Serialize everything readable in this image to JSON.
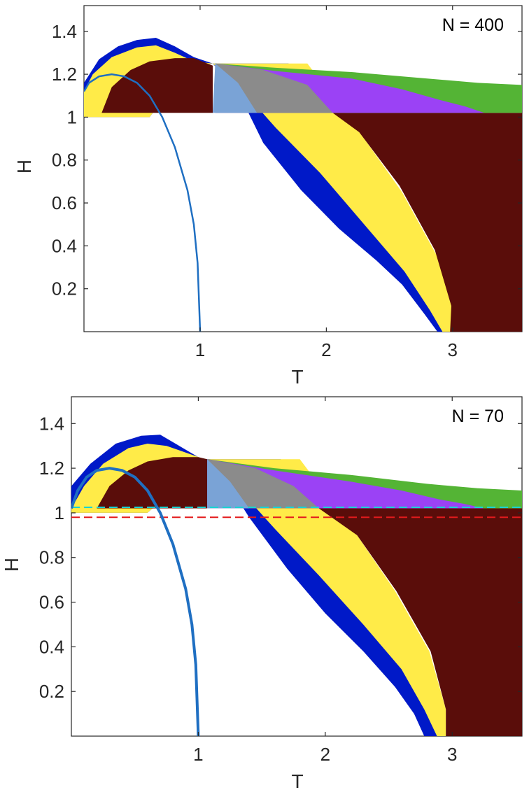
{
  "chart_data": [
    {
      "type": "area",
      "annotation": "N = 400",
      "xlabel": "T",
      "ylabel": "H",
      "xlim": [
        0.08,
        3.55
      ],
      "ylim": [
        0.0,
        1.52
      ],
      "xticks": [
        1,
        2,
        3
      ],
      "xtick_labels": [
        "1",
        "2",
        "3"
      ],
      "yticks": [
        0.2,
        0.4,
        0.6,
        0.8,
        1.0,
        1.2,
        1.4
      ],
      "ytick_labels": [
        "0.2",
        "0.4",
        "0.6",
        "0.8",
        "1",
        "1.2",
        "1.4"
      ],
      "grid": false,
      "regions": [
        {
          "color": "#0019c8",
          "points": [
            [
              0.08,
              1.16
            ],
            [
              0.2,
              1.27
            ],
            [
              0.35,
              1.33
            ],
            [
              0.5,
              1.36
            ],
            [
              0.65,
              1.37
            ],
            [
              0.8,
              1.33
            ],
            [
              0.95,
              1.28
            ],
            [
              1.1,
              1.25
            ],
            [
              1.3,
              1.12
            ],
            [
              1.5,
              0.88
            ],
            [
              1.8,
              0.66
            ],
            [
              2.1,
              0.48
            ],
            [
              2.4,
              0.33
            ],
            [
              2.6,
              0.22
            ],
            [
              2.78,
              0.08
            ],
            [
              2.88,
              0.0
            ],
            [
              2.96,
              0.0
            ],
            [
              2.95,
              0.1
            ],
            [
              2.78,
              0.35
            ],
            [
              2.45,
              0.65
            ],
            [
              2.1,
              0.95
            ],
            [
              1.7,
              1.25
            ],
            [
              1.1,
              1.25
            ],
            [
              0.9,
              1.23
            ],
            [
              0.6,
              1.0
            ],
            [
              0.08,
              1.0
            ]
          ]
        },
        {
          "color": "#ffeb48",
          "points": [
            [
              0.08,
              1.12
            ],
            [
              0.15,
              1.2
            ],
            [
              0.3,
              1.28
            ],
            [
              0.5,
              1.325
            ],
            [
              0.65,
              1.335
            ],
            [
              0.8,
              1.3
            ],
            [
              0.95,
              1.26
            ],
            [
              1.1,
              1.25
            ],
            [
              1.3,
              1.15
            ],
            [
              1.6,
              0.95
            ],
            [
              1.95,
              0.74
            ],
            [
              2.3,
              0.5
            ],
            [
              2.62,
              0.28
            ],
            [
              2.82,
              0.1
            ],
            [
              2.92,
              0.0
            ],
            [
              2.99,
              0.0
            ],
            [
              3.0,
              0.1
            ],
            [
              2.88,
              0.35
            ],
            [
              2.6,
              0.65
            ],
            [
              2.3,
              0.9
            ],
            [
              1.85,
              1.25
            ],
            [
              1.1,
              1.25
            ],
            [
              0.9,
              1.23
            ],
            [
              0.6,
              1.0
            ],
            [
              0.08,
              1.0
            ]
          ]
        },
        {
          "color": "#5a0d0a",
          "points": [
            [
              0.22,
              1.02
            ],
            [
              0.3,
              1.14
            ],
            [
              0.45,
              1.22
            ],
            [
              0.6,
              1.26
            ],
            [
              0.8,
              1.275
            ],
            [
              0.95,
              1.275
            ],
            [
              1.1,
              1.24
            ],
            [
              1.1,
              1.02
            ]
          ]
        },
        {
          "color": "#5a0d0a",
          "points": [
            [
              1.1,
              1.02
            ],
            [
              3.55,
              1.02
            ],
            [
              3.55,
              0.0
            ],
            [
              2.98,
              0.0
            ],
            [
              2.99,
              0.12
            ],
            [
              2.86,
              0.38
            ],
            [
              2.58,
              0.68
            ],
            [
              2.26,
              0.93
            ],
            [
              2.05,
              1.02
            ]
          ]
        },
        {
          "color": "#54b435",
          "points": [
            [
              1.12,
              1.25
            ],
            [
              1.6,
              1.23
            ],
            [
              2.2,
              1.21
            ],
            [
              2.8,
              1.18
            ],
            [
              3.2,
              1.16
            ],
            [
              3.55,
              1.15
            ],
            [
              3.55,
              1.02
            ],
            [
              1.12,
              1.02
            ]
          ]
        },
        {
          "color": "#9b42f5",
          "points": [
            [
              1.12,
              1.25
            ],
            [
              1.6,
              1.215
            ],
            [
              2.2,
              1.18
            ],
            [
              2.6,
              1.13
            ],
            [
              2.9,
              1.08
            ],
            [
              3.1,
              1.05
            ],
            [
              3.25,
              1.02
            ],
            [
              1.12,
              1.02
            ]
          ]
        },
        {
          "color": "#8b8b8b",
          "points": [
            [
              1.12,
              1.25
            ],
            [
              1.5,
              1.22
            ],
            [
              1.85,
              1.15
            ],
            [
              2.05,
              1.02
            ],
            [
              1.45,
              1.02
            ]
          ]
        },
        {
          "color": "#7aa3d6",
          "points": [
            [
              1.12,
              1.25
            ],
            [
              1.3,
              1.16
            ],
            [
              1.45,
              1.02
            ],
            [
              1.1,
              1.02
            ]
          ]
        }
      ],
      "series": [
        {
          "color": "#1f6fc2",
          "x": [
            0.08,
            0.12,
            0.2,
            0.3,
            0.4,
            0.5,
            0.6,
            0.7,
            0.8,
            0.9,
            0.95,
            0.98,
            1.0
          ],
          "y": [
            1.12,
            1.16,
            1.19,
            1.2,
            1.19,
            1.16,
            1.1,
            1.0,
            0.86,
            0.66,
            0.5,
            0.32,
            0.0
          ]
        }
      ],
      "hlines": []
    },
    {
      "type": "area",
      "annotation": "N = 70",
      "xlabel": "T",
      "ylabel": "H",
      "xlim": [
        0.0,
        3.55
      ],
      "ylim": [
        0.0,
        1.52
      ],
      "xticks": [
        1,
        2,
        3
      ],
      "xtick_labels": [
        "1",
        "2",
        "3"
      ],
      "yticks": [
        0.2,
        0.4,
        0.6,
        0.8,
        1.0,
        1.2,
        1.4
      ],
      "ytick_labels": [
        "0.2",
        "0.4",
        "0.6",
        "0.8",
        "1",
        "1.2",
        "1.4"
      ],
      "grid": false,
      "regions": [
        {
          "color": "#0019c8",
          "points": [
            [
              0.0,
              1.12
            ],
            [
              0.15,
              1.22
            ],
            [
              0.35,
              1.31
            ],
            [
              0.55,
              1.345
            ],
            [
              0.7,
              1.35
            ],
            [
              0.85,
              1.3
            ],
            [
              1.0,
              1.25
            ],
            [
              1.2,
              1.16
            ],
            [
              1.4,
              0.98
            ],
            [
              1.7,
              0.75
            ],
            [
              2.0,
              0.55
            ],
            [
              2.3,
              0.38
            ],
            [
              2.55,
              0.22
            ],
            [
              2.7,
              0.1
            ],
            [
              2.78,
              0.0
            ],
            [
              2.9,
              0.0
            ],
            [
              2.88,
              0.12
            ],
            [
              2.7,
              0.38
            ],
            [
              2.4,
              0.65
            ],
            [
              2.0,
              0.98
            ],
            [
              1.65,
              1.24
            ],
            [
              1.05,
              1.24
            ],
            [
              0.8,
              1.1
            ],
            [
              0.6,
              1.0
            ],
            [
              0.0,
              1.0
            ]
          ]
        },
        {
          "color": "#ffeb48",
          "points": [
            [
              0.0,
              1.02
            ],
            [
              0.1,
              1.12
            ],
            [
              0.25,
              1.22
            ],
            [
              0.45,
              1.29
            ],
            [
              0.6,
              1.31
            ],
            [
              0.75,
              1.3
            ],
            [
              0.9,
              1.27
            ],
            [
              1.05,
              1.24
            ],
            [
              1.3,
              1.12
            ],
            [
              1.6,
              0.93
            ],
            [
              1.95,
              0.72
            ],
            [
              2.3,
              0.5
            ],
            [
              2.6,
              0.3
            ],
            [
              2.78,
              0.12
            ],
            [
              2.88,
              0.0
            ],
            [
              2.95,
              0.0
            ],
            [
              2.95,
              0.12
            ],
            [
              2.82,
              0.38
            ],
            [
              2.55,
              0.65
            ],
            [
              2.25,
              0.9
            ],
            [
              1.8,
              1.24
            ],
            [
              1.05,
              1.24
            ],
            [
              0.8,
              1.1
            ],
            [
              0.6,
              1.0
            ],
            [
              0.0,
              1.0
            ]
          ]
        },
        {
          "color": "#5a0d0a",
          "points": [
            [
              0.2,
              1.02
            ],
            [
              0.3,
              1.12
            ],
            [
              0.45,
              1.19
            ],
            [
              0.6,
              1.23
            ],
            [
              0.8,
              1.25
            ],
            [
              1.0,
              1.25
            ],
            [
              1.07,
              1.24
            ],
            [
              1.07,
              1.02
            ]
          ]
        },
        {
          "color": "#5a0d0a",
          "points": [
            [
              1.07,
              1.02
            ],
            [
              3.55,
              1.02
            ],
            [
              3.55,
              0.0
            ],
            [
              2.95,
              0.0
            ],
            [
              2.95,
              0.12
            ],
            [
              2.83,
              0.38
            ],
            [
              2.56,
              0.65
            ],
            [
              2.25,
              0.9
            ],
            [
              1.95,
              1.02
            ]
          ]
        },
        {
          "color": "#54b435",
          "points": [
            [
              1.07,
              1.24
            ],
            [
              1.6,
              1.2
            ],
            [
              2.2,
              1.17
            ],
            [
              2.8,
              1.13
            ],
            [
              3.2,
              1.11
            ],
            [
              3.55,
              1.1
            ],
            [
              3.55,
              1.02
            ],
            [
              1.07,
              1.02
            ]
          ]
        },
        {
          "color": "#9b42f5",
          "points": [
            [
              1.07,
              1.24
            ],
            [
              1.6,
              1.19
            ],
            [
              2.2,
              1.14
            ],
            [
              2.6,
              1.1
            ],
            [
              2.9,
              1.06
            ],
            [
              3.1,
              1.04
            ],
            [
              3.25,
              1.02
            ],
            [
              1.07,
              1.02
            ]
          ]
        },
        {
          "color": "#8b8b8b",
          "points": [
            [
              1.07,
              1.24
            ],
            [
              1.45,
              1.2
            ],
            [
              1.75,
              1.12
            ],
            [
              1.95,
              1.02
            ],
            [
              1.4,
              1.02
            ]
          ]
        },
        {
          "color": "#7aa3d6",
          "points": [
            [
              1.07,
              1.24
            ],
            [
              1.25,
              1.14
            ],
            [
              1.4,
              1.02
            ],
            [
              1.07,
              1.02
            ]
          ]
        }
      ],
      "series": [
        {
          "color": "#1f6fc2",
          "x": [
            0.0,
            0.05,
            0.12,
            0.2,
            0.3,
            0.4,
            0.5,
            0.6,
            0.7,
            0.8,
            0.9,
            0.95,
            0.98,
            1.0
          ],
          "y": [
            1.02,
            1.1,
            1.16,
            1.19,
            1.2,
            1.19,
            1.16,
            1.1,
            1.0,
            0.86,
            0.66,
            0.5,
            0.32,
            0.0
          ]
        }
      ],
      "hlines": [
        {
          "y": 1.025,
          "color": "#19d3d3",
          "style": "dashed"
        },
        {
          "y": 0.98,
          "color": "#e31a1c",
          "style": "dashed"
        }
      ]
    }
  ]
}
